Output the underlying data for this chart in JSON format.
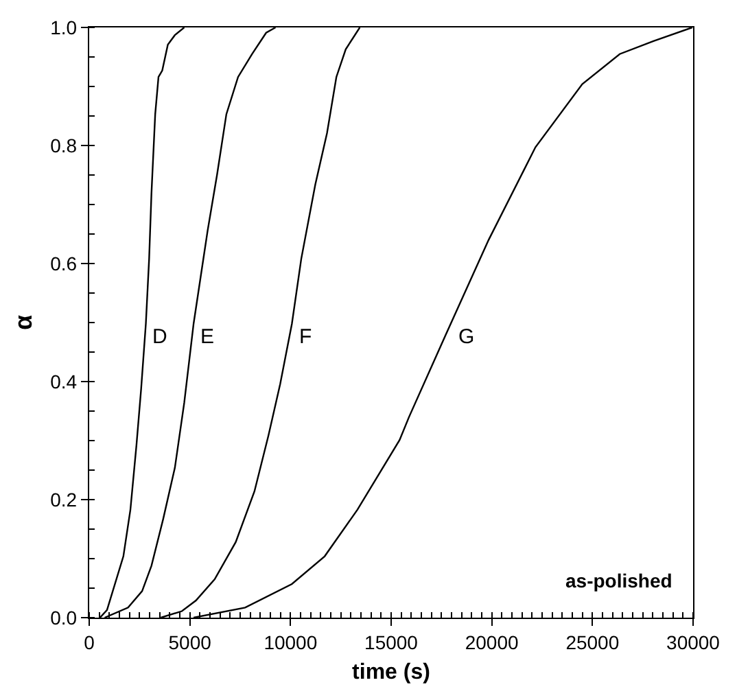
{
  "chart_data": {
    "type": "line",
    "xlabel": "time (s)",
    "ylabel": "α",
    "xlim": [
      0,
      30000
    ],
    "ylim": [
      0,
      1
    ],
    "xticks": [
      0,
      5000,
      10000,
      15000,
      20000,
      25000,
      30000
    ],
    "yticks": [
      {
        "value": 0,
        "label": "0.0"
      },
      0.2,
      0.4,
      0.6,
      0.8,
      {
        "value": 1,
        "label": "1.0"
      }
    ],
    "legend": false,
    "marker": "none",
    "line_style": "solid",
    "series": [
      {
        "name": "D",
        "color": "#000000",
        "x": [
          535,
          884,
          1698,
          2047,
          2349,
          2581,
          2814,
          2977,
          3093,
          3279,
          3442,
          3628,
          3907,
          4256,
          4721
        ],
        "values": [
          0,
          0.013,
          0.104,
          0.183,
          0.293,
          0.388,
          0.498,
          0.608,
          0.719,
          0.853,
          0.916,
          0.927,
          0.971,
          0.987,
          1.0
        ]
      },
      {
        "name": "E",
        "color": "#000000",
        "x": [
          767,
          1930,
          2628,
          3093,
          3674,
          4256,
          4721,
          5186,
          5535,
          5884,
          6349,
          6814,
          7395,
          8093,
          8791,
          9256
        ],
        "values": [
          0,
          0.017,
          0.045,
          0.088,
          0.167,
          0.254,
          0.364,
          0.498,
          0.577,
          0.656,
          0.75,
          0.853,
          0.916,
          0.955,
          0.991,
          1.0
        ]
      },
      {
        "name": "F",
        "color": "#000000",
        "x": [
          3558,
          4605,
          5302,
          6233,
          7279,
          8209,
          8907,
          9488,
          10070,
          10535,
          11233,
          11814,
          12279,
          12744,
          13442
        ],
        "values": [
          0,
          0.011,
          0.029,
          0.065,
          0.128,
          0.214,
          0.309,
          0.396,
          0.498,
          0.608,
          0.734,
          0.821,
          0.916,
          0.963,
          1.0
        ]
      },
      {
        "name": "G",
        "color": "#000000",
        "x": [
          5186,
          7744,
          10070,
          11698,
          13326,
          15419,
          15888,
          17748,
          19842,
          22168,
          24495,
          26357,
          28032,
          29957
        ],
        "values": [
          0,
          0.017,
          0.057,
          0.104,
          0.183,
          0.301,
          0.34,
          0.482,
          0.64,
          0.797,
          0.904,
          0.955,
          0.977,
          1.0
        ]
      }
    ],
    "annotations": [
      "as-polished"
    ]
  }
}
